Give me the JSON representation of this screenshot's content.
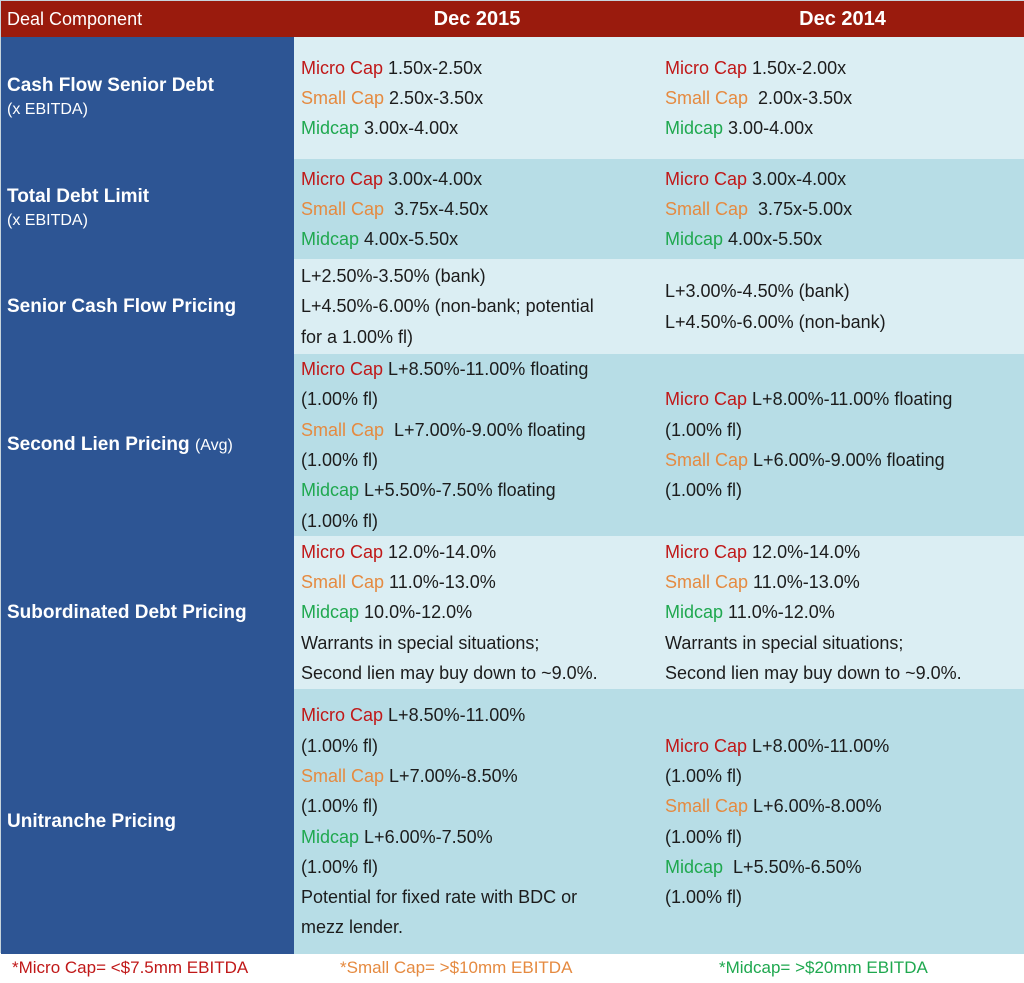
{
  "header": {
    "component": "Deal Component",
    "col1": "Dec 2015",
    "col2": "Dec 2014"
  },
  "tiers": {
    "micro": "Micro Cap",
    "small": "Small Cap",
    "mid": "Midcap"
  },
  "colors": {
    "header_bg": "#9a1b0d",
    "label_bg": "#2d5594",
    "row_light": "#dbeef3",
    "row_dark": "#b7dde6",
    "micro": "#c01818",
    "small": "#e58a40",
    "mid": "#1fa84f"
  },
  "rows": [
    {
      "label": "Cash Flow Senior Debt",
      "sub": "(x EBITDA)",
      "dec2015": {
        "micro": "1.50x-2.50x",
        "small": "2.50x-3.50x",
        "mid": "3.00x-4.00x"
      },
      "dec2014": {
        "micro": "1.50x-2.00x",
        "small": "2.00x-3.50x",
        "mid": "3.00-4.00x"
      }
    },
    {
      "label": "Total Debt Limit",
      "sub": "(x EBITDA)",
      "dec2015": {
        "micro": "3.00x-4.00x",
        "small": "3.75x-4.50x",
        "mid": "4.00x-5.50x"
      },
      "dec2014": {
        "micro": "3.00x-4.00x",
        "small": "3.75x-5.00x",
        "mid": "4.00x-5.50x"
      }
    },
    {
      "label": "Senior Cash Flow Pricing",
      "dec2015": [
        "L+2.50%-3.50% (bank)",
        "L+4.50%-6.00% (non-bank; potential",
        "for a 1.00% fl)"
      ],
      "dec2014": [
        "L+3.00%-4.50% (bank)",
        "L+4.50%-6.00% (non-bank)"
      ]
    },
    {
      "label": "Second Lien Pricing",
      "label_suffix": "(Avg)",
      "dec2015": {
        "micro": "L+8.50%-11.00% floating",
        "small": "L+7.00%-9.00% floating",
        "mid": "L+5.50%-7.50% floating",
        "fl": "(1.00% fl)"
      },
      "dec2014": {
        "micro": "L+8.00%-11.00% floating",
        "small": "L+6.00%-9.00% floating",
        "fl": "(1.00% fl)"
      }
    },
    {
      "label": "Subordinated Debt Pricing",
      "dec2015": {
        "micro": "12.0%-14.0%",
        "small": "11.0%-13.0%",
        "mid": "10.0%-12.0%",
        "note1": "Warrants in special situations;",
        "note2": "Second lien may buy down to ~9.0%."
      },
      "dec2014": {
        "micro": "12.0%-14.0%",
        "small": "11.0%-13.0%",
        "mid": "11.0%-12.0%",
        "note1": "Warrants in special situations;",
        "note2": "Second lien may buy down to ~9.0%."
      }
    },
    {
      "label": "Unitranche Pricing",
      "dec2015": {
        "micro": "L+8.50%-11.00%",
        "small": "L+7.00%-8.50%",
        "mid": "L+6.00%-7.50%",
        "fl": "(1.00% fl)",
        "note1": "Potential for fixed rate with BDC or",
        "note2": "mezz lender."
      },
      "dec2014": {
        "micro": "L+8.00%-11.00%",
        "small": "L+6.00%-8.00%",
        "mid": "L+5.50%-6.50%",
        "fl": "(1.00% fl)"
      }
    }
  ],
  "footnotes": [
    "*Micro Cap= <$7.5mm EBITDA",
    "*Small Cap= >$10mm EBITDA",
    "*Midcap= >$20mm EBITDA"
  ]
}
